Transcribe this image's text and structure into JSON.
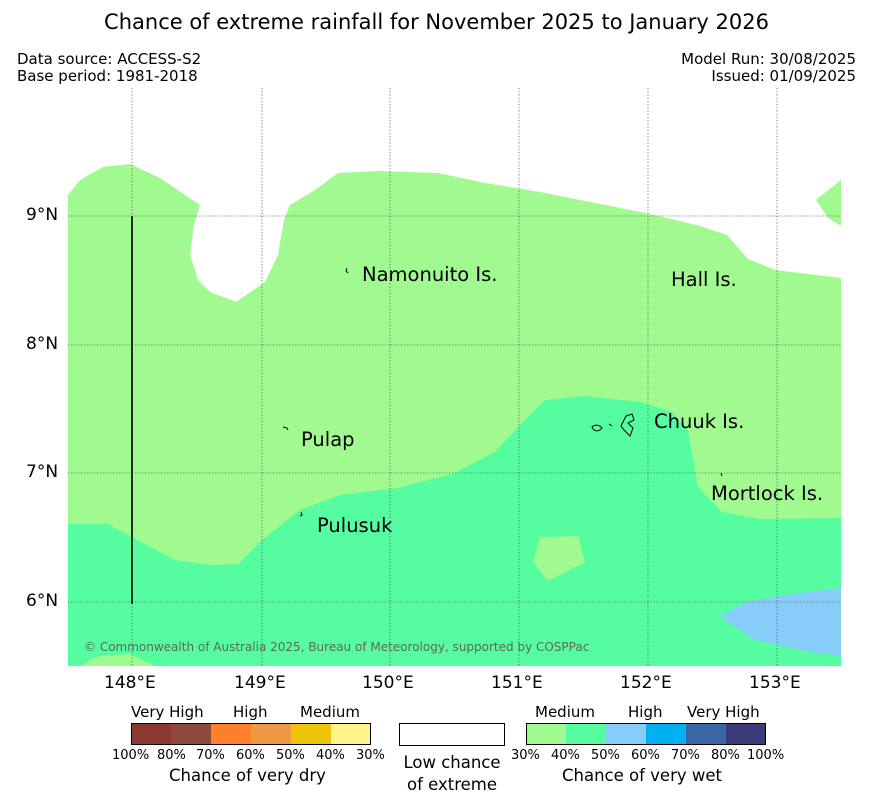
{
  "title": "Chance of extreme rainfall for November 2025 to January 2026",
  "meta": {
    "data_source": "Data source: ACCESS-S2",
    "base_period": "Base period: 1981-2018",
    "model_run": "Model Run: 30/08/2025",
    "issued": "Issued: 01/09/2025"
  },
  "map": {
    "places": {
      "namonuito": "Namonuito Is.",
      "hall": "Hall Is.",
      "pulap": "Pulap",
      "chuuk": "Chuuk Is.",
      "mortlock": "Mortlock Is.",
      "pulusuk": "Pulusuk"
    },
    "x_ticks": [
      "148°E",
      "149°E",
      "150°E",
      "151°E",
      "152°E",
      "153°E"
    ],
    "y_ticks": [
      "9°N",
      "8°N",
      "7°N",
      "6°N"
    ],
    "copyright": "© Commonwealth of Australia 2025, Bureau of Meteorology, supported by COSPPac",
    "fill_colors": {
      "wet_medium_30_40": "#a0fa90",
      "wet_medium_40_50": "#56fca0",
      "wet_high_50_60": "#88ccfa"
    }
  },
  "legend": {
    "dry": {
      "headers": [
        "Very High",
        "High",
        "Medium"
      ],
      "percent_labels": [
        "100%",
        "80%",
        "70%",
        "60%",
        "50%",
        "40%",
        "30%"
      ],
      "title": "Chance of very dry",
      "colors": [
        "#8b3a32",
        "#8b4a3a",
        "#ff7f2a",
        "#ee9944",
        "#eec40a",
        "#fff48a"
      ]
    },
    "neutral": {
      "line1": "Low chance",
      "line2": "of extreme"
    },
    "wet": {
      "headers": [
        "Medium",
        "High",
        "Very High"
      ],
      "percent_labels": [
        "30%",
        "40%",
        "50%",
        "60%",
        "70%",
        "80%",
        "100%"
      ],
      "title": "Chance of very wet",
      "colors": [
        "#a0fa90",
        "#56fca0",
        "#88ccfa",
        "#00b0f0",
        "#3a66a6",
        "#3b3b7a"
      ]
    }
  }
}
